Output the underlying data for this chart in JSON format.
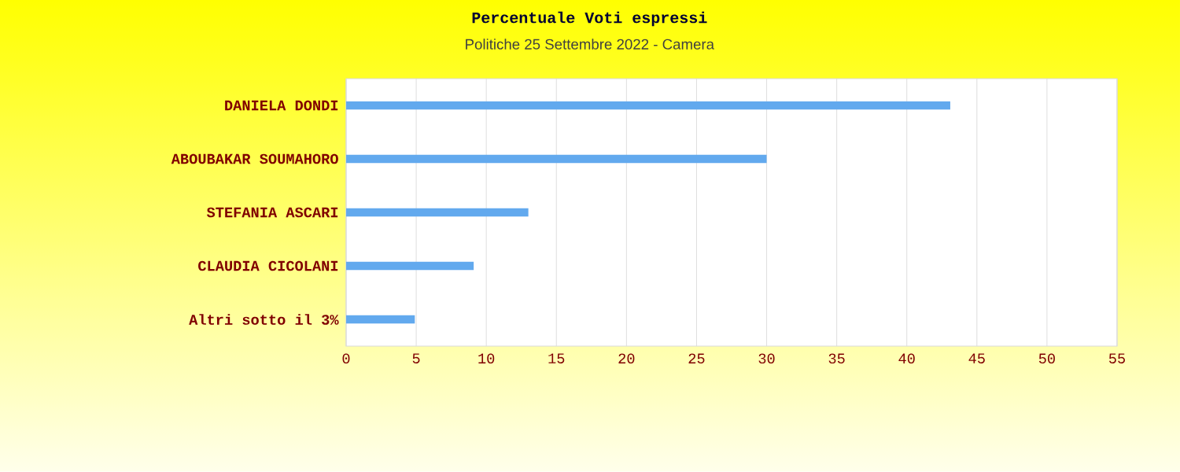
{
  "chart_data": {
    "type": "bar",
    "orientation": "horizontal",
    "title": "Percentuale Voti espressi",
    "subtitle": "Politiche 25 Settembre 2022 - Camera",
    "categories": [
      "DANIELA DONDI",
      "ABOUBAKAR SOUMAHORO",
      "STEFANIA ASCARI",
      "CLAUDIA CICOLANI",
      "Altri sotto il 3%"
    ],
    "values": [
      43.1,
      30.0,
      13.0,
      9.1,
      4.9
    ],
    "color": "#62a9ee",
    "xlim": [
      0,
      55
    ],
    "xticks": [
      0,
      5,
      10,
      15,
      20,
      25,
      30,
      35,
      40,
      45,
      50,
      55
    ],
    "grid": "x"
  }
}
